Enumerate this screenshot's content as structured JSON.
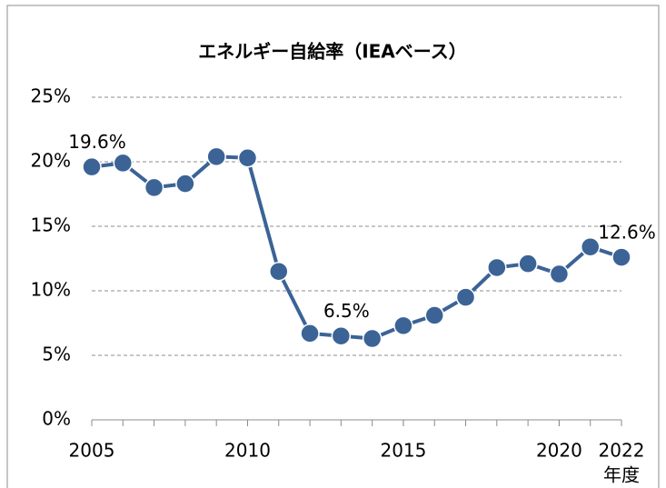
{
  "chart_data": {
    "type": "line",
    "title": "エネルギー自給率（IEAベース）",
    "x_label": "年度",
    "x": [
      2005,
      2006,
      2007,
      2008,
      2009,
      2010,
      2011,
      2012,
      2013,
      2014,
      2015,
      2016,
      2017,
      2018,
      2019,
      2020,
      2021,
      2022
    ],
    "series": [
      {
        "name": "エネルギー自給率",
        "color": "#3b6396",
        "values": [
          19.6,
          19.9,
          18.0,
          18.3,
          20.4,
          20.3,
          11.5,
          6.7,
          6.5,
          6.3,
          7.3,
          8.1,
          9.5,
          11.8,
          12.1,
          11.3,
          13.4,
          12.6
        ],
        "value_labels": [
          "19.6%",
          null,
          null,
          null,
          null,
          null,
          null,
          null,
          "6.5%",
          null,
          null,
          null,
          null,
          null,
          null,
          null,
          null,
          "12.6%"
        ]
      }
    ],
    "xlim": [
      2005,
      2022
    ],
    "xticks": [
      2005,
      2010,
      2015,
      2020,
      2022
    ],
    "ylim": [
      0,
      25
    ],
    "yticks": [
      {
        "value": 0,
        "label": "0%"
      },
      {
        "value": 5,
        "label": "5%"
      },
      {
        "value": 10,
        "label": "10%"
      },
      {
        "value": 15,
        "label": "15%"
      },
      {
        "value": 20,
        "label": "20%"
      },
      {
        "value": 25,
        "label": "25%"
      }
    ],
    "grid": true
  }
}
